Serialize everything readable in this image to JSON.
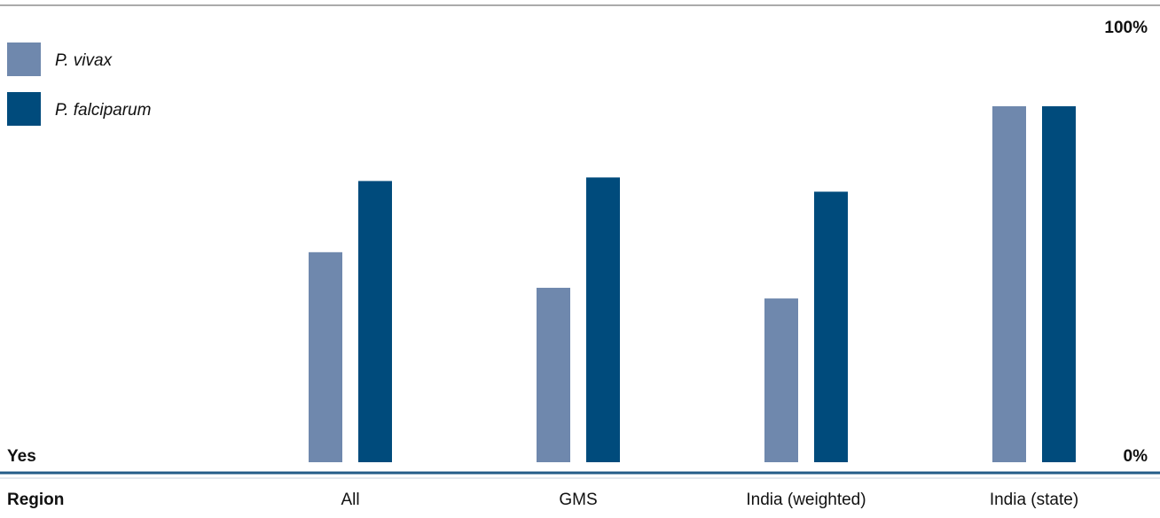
{
  "chart_data": {
    "type": "bar",
    "categories": [
      "All",
      "GMS",
      "India (weighted)",
      "India (state)"
    ],
    "series": [
      {
        "name": "P. vivax",
        "values": [
          59,
          49,
          46,
          100
        ],
        "color": "#6f88ad"
      },
      {
        "name": "P. falciparum",
        "values": [
          79,
          80,
          76,
          100
        ],
        "color": "#004b7c"
      }
    ],
    "ylim": [
      0,
      100
    ],
    "y_top_label": "100%",
    "y_bottom_label": "0%",
    "row_label": "Yes",
    "category_header": "Region",
    "legend_position": "top-left",
    "grid": false,
    "axis_color": "#235b87"
  }
}
